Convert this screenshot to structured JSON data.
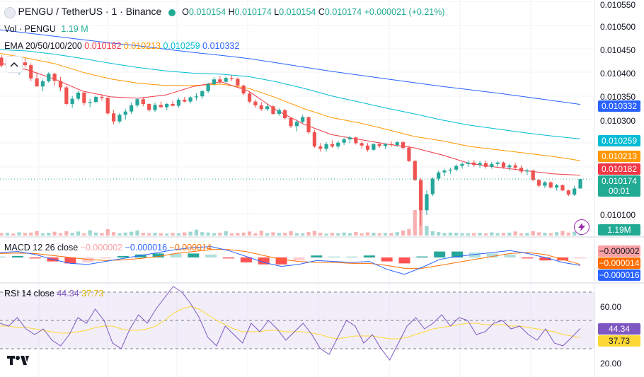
{
  "header": {
    "symbol": "PENGU / TetherUS · 1 · Binance",
    "ohlc": {
      "o_label": "O",
      "o_value": "0.010154",
      "h_label": "H",
      "h_value": "0.010174",
      "l_label": "L",
      "l_value": "0.010154",
      "c_label": "C",
      "c_value": "0.010174",
      "change": "+0.000021 (+0.21%)"
    }
  },
  "vol_legend": {
    "label": "Vol · PENGU",
    "value": "1.19 M"
  },
  "ema_legend": {
    "label": "EMA 20/50/100/200",
    "values": [
      "0.010182",
      "0.010213",
      "0.010259",
      "0.010332"
    ]
  },
  "macd_legend": {
    "label": "MACD 12 26 close",
    "values": [
      "−0.000002",
      "−0.000016",
      "−0.000014"
    ]
  },
  "rsi_legend": {
    "label": "RSI 14 close",
    "values": [
      "44.34",
      "37.73"
    ]
  },
  "price_axis": {
    "ticks": [
      "0.010550",
      "0.010500",
      "0.010450",
      "0.010400",
      "0.010350",
      "0.010300",
      "0.010100"
    ],
    "tags": {
      "ema200": "0.010332",
      "ema100": "0.010259",
      "ema50": "0.010213",
      "ema20": "0.010182",
      "last": "0.010174",
      "countdown": "00:01",
      "volume": "1.19M"
    }
  },
  "macd_axis": {
    "tags": [
      "−0.000002",
      "−0.000014",
      "−0.000016"
    ]
  },
  "rsi_axis": {
    "ticks": [
      "60.00",
      "20.00"
    ],
    "tags": [
      "44.34",
      "37.73"
    ]
  },
  "colors": {
    "up": "#26a69a",
    "down": "#ef5350",
    "ema20": "#f23645",
    "ema50": "#ff9800",
    "ema100": "#00bcd4",
    "ema200": "#2962ff",
    "macd": "#2962ff",
    "signal": "#ff6d00",
    "rsi": "#7e57c2",
    "rsi_ma": "#fdd835"
  },
  "icons": [
    "collapse-icon",
    "lightning-icon",
    "tradingview-logo"
  ],
  "chart_data": {
    "type": "candlestick",
    "interval": "1m",
    "ylim": [
      0.01005,
      0.01055
    ],
    "candles": [
      [
        0.010431,
        0.010436,
        0.01041,
        0.010414
      ],
      [
        0.010414,
        0.010425,
        0.010402,
        0.01042
      ],
      [
        0.01042,
        0.010431,
        0.010405,
        0.01041
      ],
      [
        0.01041,
        0.010426,
        0.010395,
        0.010421
      ],
      [
        0.010421,
        0.01043,
        0.01041,
        0.010415
      ],
      [
        0.010415,
        0.010419,
        0.010381,
        0.010387
      ],
      [
        0.010387,
        0.0104,
        0.01037,
        0.01037
      ],
      [
        0.01037,
        0.010385,
        0.01036,
        0.010381
      ],
      [
        0.010381,
        0.0104,
        0.010378,
        0.010397
      ],
      [
        0.010397,
        0.010399,
        0.010372,
        0.010382
      ],
      [
        0.010382,
        0.01039,
        0.01036,
        0.010368
      ],
      [
        0.010368,
        0.010372,
        0.01033,
        0.010333
      ],
      [
        0.010333,
        0.01035,
        0.010325,
        0.010344
      ],
      [
        0.010344,
        0.01036,
        0.01034,
        0.010357
      ],
      [
        0.010357,
        0.010358,
        0.01033,
        0.010335
      ],
      [
        0.010335,
        0.010344,
        0.010326,
        0.010337
      ],
      [
        0.010337,
        0.010351,
        0.010335,
        0.010348
      ],
      [
        0.010348,
        0.010354,
        0.01034,
        0.010346
      ],
      [
        0.010346,
        0.010347,
        0.01031,
        0.010313
      ],
      [
        0.010313,
        0.01032,
        0.01029,
        0.010296
      ],
      [
        0.010296,
        0.010314,
        0.010292,
        0.01031
      ],
      [
        0.01031,
        0.010322,
        0.0103,
        0.010317
      ],
      [
        0.010317,
        0.010336,
        0.010312,
        0.01033
      ],
      [
        0.01033,
        0.010345,
        0.010326,
        0.010343
      ],
      [
        0.010343,
        0.010348,
        0.010328,
        0.010333
      ],
      [
        0.010333,
        0.010334,
        0.010317,
        0.01032
      ],
      [
        0.01032,
        0.010336,
        0.010316,
        0.010331
      ],
      [
        0.010331,
        0.010338,
        0.010325,
        0.010326
      ],
      [
        0.010326,
        0.010335,
        0.01032,
        0.010333
      ],
      [
        0.010333,
        0.010339,
        0.010328,
        0.010329
      ],
      [
        0.010329,
        0.010345,
        0.010325,
        0.010342
      ],
      [
        0.010342,
        0.010348,
        0.010336,
        0.010338
      ],
      [
        0.010338,
        0.01035,
        0.010334,
        0.010347
      ],
      [
        0.010347,
        0.010356,
        0.01034,
        0.010349
      ],
      [
        0.010349,
        0.010363,
        0.010344,
        0.01036
      ],
      [
        0.01036,
        0.010378,
        0.010356,
        0.010375
      ],
      [
        0.010375,
        0.01039,
        0.010371,
        0.010385
      ],
      [
        0.010385,
        0.010392,
        0.010376,
        0.01038
      ],
      [
        0.01038,
        0.010391,
        0.010376,
        0.010388
      ],
      [
        0.010388,
        0.010394,
        0.010382,
        0.010386
      ],
      [
        0.010386,
        0.010389,
        0.01037,
        0.010372
      ],
      [
        0.010372,
        0.010374,
        0.010352,
        0.010355
      ],
      [
        0.010355,
        0.010358,
        0.010335,
        0.010338
      ],
      [
        0.010338,
        0.010342,
        0.010325,
        0.01033
      ],
      [
        0.01033,
        0.010337,
        0.010318,
        0.010322
      ],
      [
        0.010322,
        0.010332,
        0.010318,
        0.010328
      ],
      [
        0.010328,
        0.01033,
        0.01031,
        0.010312
      ],
      [
        0.010312,
        0.010324,
        0.010308,
        0.01032
      ],
      [
        0.01032,
        0.010322,
        0.0103,
        0.010303
      ],
      [
        0.010303,
        0.010306,
        0.010282,
        0.010286
      ],
      [
        0.010286,
        0.0103,
        0.010275,
        0.010295
      ],
      [
        0.010295,
        0.01031,
        0.010292,
        0.010305
      ],
      [
        0.010305,
        0.010306,
        0.01027,
        0.010273
      ],
      [
        0.010273,
        0.010278,
        0.01024,
        0.010243
      ],
      [
        0.010243,
        0.01025,
        0.010232,
        0.010238
      ],
      [
        0.010238,
        0.010252,
        0.010232,
        0.010248
      ],
      [
        0.010248,
        0.010256,
        0.01024,
        0.010243
      ],
      [
        0.010243,
        0.010255,
        0.010238,
        0.010251
      ],
      [
        0.010251,
        0.010262,
        0.010246,
        0.010258
      ],
      [
        0.010258,
        0.010266,
        0.01025,
        0.010262
      ],
      [
        0.010262,
        0.010264,
        0.010247,
        0.01025
      ],
      [
        0.01025,
        0.010254,
        0.010238,
        0.010245
      ],
      [
        0.010245,
        0.01025,
        0.010232,
        0.010236
      ],
      [
        0.010236,
        0.01025,
        0.010234,
        0.010248
      ],
      [
        0.010248,
        0.010252,
        0.01024,
        0.010244
      ],
      [
        0.010244,
        0.01025,
        0.010238,
        0.010248
      ],
      [
        0.010248,
        0.010254,
        0.010242,
        0.010246
      ],
      [
        0.010246,
        0.010254,
        0.010242,
        0.010252
      ],
      [
        0.010252,
        0.010255,
        0.010236,
        0.01024
      ],
      [
        0.01024,
        0.010245,
        0.01021,
        0.010212
      ],
      [
        0.010212,
        0.010215,
        0.01017,
        0.010172
      ],
      [
        0.010172,
        0.010176,
        0.010075,
        0.010108
      ],
      [
        0.010108,
        0.01015,
        0.010098,
        0.010142
      ],
      [
        0.010142,
        0.010178,
        0.010138,
        0.010175
      ],
      [
        0.010175,
        0.010192,
        0.01017,
        0.010188
      ],
      [
        0.010188,
        0.010196,
        0.01018,
        0.010192
      ],
      [
        0.010192,
        0.010198,
        0.010185,
        0.010194
      ],
      [
        0.010194,
        0.010205,
        0.01019,
        0.010202
      ],
      [
        0.010202,
        0.01021,
        0.010196,
        0.010206
      ],
      [
        0.010206,
        0.010214,
        0.0102,
        0.010209
      ],
      [
        0.010209,
        0.010215,
        0.0102,
        0.010204
      ],
      [
        0.010204,
        0.010212,
        0.010198,
        0.010208
      ],
      [
        0.010208,
        0.010213,
        0.010196,
        0.0102
      ],
      [
        0.0102,
        0.01021,
        0.010196,
        0.010206
      ],
      [
        0.010206,
        0.010212,
        0.0102,
        0.010209
      ],
      [
        0.010209,
        0.010211,
        0.010196,
        0.010199
      ],
      [
        0.010199,
        0.010206,
        0.010192,
        0.010203
      ],
      [
        0.010203,
        0.010208,
        0.010195,
        0.010198
      ],
      [
        0.010198,
        0.010203,
        0.010186,
        0.01019
      ],
      [
        0.01019,
        0.010196,
        0.010182,
        0.010192
      ],
      [
        0.010192,
        0.010194,
        0.01017,
        0.010172
      ],
      [
        0.010172,
        0.010174,
        0.010156,
        0.01016
      ],
      [
        0.01016,
        0.01017,
        0.010155,
        0.010167
      ],
      [
        0.010167,
        0.01017,
        0.010154,
        0.010156
      ],
      [
        0.010156,
        0.010164,
        0.01015,
        0.010161
      ],
      [
        0.010161,
        0.010163,
        0.010148,
        0.01015
      ],
      [
        0.01015,
        0.010152,
        0.010138,
        0.010141
      ],
      [
        0.010141,
        0.01016,
        0.010138,
        0.010154
      ],
      [
        0.010154,
        0.010174,
        0.010154,
        0.010174
      ]
    ],
    "ema20": [
      0.01042,
      0.010405,
      0.010385,
      0.01036,
      0.010348,
      0.010345,
      0.010352,
      0.01037,
      0.01038,
      0.01036,
      0.01032,
      0.01029,
      0.010268,
      0.010258,
      0.010248,
      0.01024,
      0.010225,
      0.010207,
      0.010199,
      0.010192,
      0.010185,
      0.010182
    ],
    "ema50": [
      0.01044,
      0.01043,
      0.010418,
      0.0104,
      0.010386,
      0.010377,
      0.010372,
      0.010372,
      0.010375,
      0.010366,
      0.010346,
      0.010323,
      0.010304,
      0.010293,
      0.010279,
      0.010264,
      0.010255,
      0.010243,
      0.010236,
      0.010229,
      0.010222,
      0.010213
    ],
    "ema100": [
      0.010448,
      0.010445,
      0.010438,
      0.010429,
      0.010419,
      0.01041,
      0.010403,
      0.010398,
      0.010396,
      0.010391,
      0.01038,
      0.010366,
      0.01035,
      0.010337,
      0.010324,
      0.010312,
      0.010299,
      0.010288,
      0.01028,
      0.010272,
      0.010265,
      0.010259
    ],
    "ema200": [
      0.01049,
      0.010483,
      0.010476,
      0.010469,
      0.010462,
      0.010456,
      0.010449,
      0.010442,
      0.010436,
      0.010429,
      0.01042,
      0.010411,
      0.010402,
      0.010394,
      0.010386,
      0.010378,
      0.01037,
      0.010363,
      0.010356,
      0.010348,
      0.01034,
      0.010332
    ],
    "volume": [
      1.1,
      1.3,
      0.9,
      1.5,
      1.2,
      1.4,
      2.2,
      1.0,
      1.3,
      1.8,
      1.1,
      2.0,
      1.3,
      1.9,
      1.0,
      2.5,
      1.4,
      1.2,
      3.0,
      1.6,
      1.1,
      1.4,
      1.8,
      2.4,
      1.2,
      1.0,
      1.3,
      1.1,
      0.9,
      1.2,
      1.0,
      1.5,
      1.8,
      2.8,
      1.6,
      1.4,
      1.1,
      1.3,
      2.1,
      1.0,
      1.2,
      1.4,
      1.9,
      1.1,
      2.3,
      1.0,
      1.5,
      1.2,
      1.3,
      2.0,
      1.1,
      1.0,
      1.6,
      2.2,
      1.3,
      0.9,
      1.2,
      1.0,
      1.4,
      1.1,
      1.7,
      1.0,
      1.5,
      1.3,
      1.0,
      1.2,
      1.1,
      1.6,
      2.4,
      3.1,
      12.0,
      16.0,
      4.5,
      2.0,
      1.6,
      1.2,
      1.4,
      1.3,
      1.1,
      1.0,
      1.2,
      1.3,
      1.0,
      1.5,
      1.1,
      1.2,
      1.4,
      1.9,
      1.0,
      1.2,
      2.0,
      1.5,
      1.3,
      1.1,
      1.6,
      2.2,
      1.4,
      1.8,
      1.19
    ],
    "macd": [
      1e-05,
      1.2e-05,
      6e-06,
      -4e-06,
      -1.2e-05,
      -1.4e-05,
      -8e-06,
      -2e-06,
      4e-06,
      1e-05,
      1.6e-05,
      2e-05,
      2.2e-05,
      1.4e-05,
      2e-06,
      -1e-05,
      -1.8e-05,
      -1.4e-05,
      -6e-06,
      -8e-06,
      -1e-05,
      -8e-06,
      -2.4e-05,
      -3.4e-05,
      -2e-05,
      -4e-06,
      2e-06,
      6e-06,
      1e-05,
      1.4e-05,
      8e-06,
      0.0,
      -1e-05,
      -1.6e-05
    ],
    "signal": [
      8e-06,
      9e-06,
      8e-06,
      4e-06,
      0.0,
      -4e-06,
      -6e-06,
      -5e-06,
      -2e-06,
      2e-06,
      8e-06,
      1.2e-05,
      1.6e-05,
      1.6e-05,
      1.2e-05,
      4e-06,
      -4e-06,
      -8e-06,
      -1e-05,
      -1e-05,
      -1.2e-05,
      -1.2e-05,
      -1.6e-05,
      -2.2e-05,
      -2.2e-05,
      -1.6e-05,
      -1e-05,
      -4e-06,
      2e-06,
      8e-06,
      1e-05,
      6e-06,
      -4e-06,
      -1.4e-05
    ],
    "rsi": [
      48,
      46,
      52,
      44,
      40,
      44,
      36,
      32,
      40,
      52,
      48,
      58,
      50,
      34,
      30,
      44,
      54,
      48,
      58,
      66,
      74,
      70,
      62,
      52,
      38,
      32,
      46,
      40,
      34,
      48,
      42,
      50,
      44,
      36,
      42,
      48,
      40,
      30,
      26,
      38,
      50,
      46,
      34,
      40,
      30,
      22,
      34,
      46,
      52,
      44,
      48,
      54,
      46,
      52,
      50,
      40,
      42,
      48,
      50,
      44,
      46,
      40,
      36,
      44,
      34,
      32,
      38,
      44.34
    ],
    "rsi_ma": [
      46,
      46,
      45,
      45,
      44,
      43,
      42,
      41,
      41,
      42,
      43,
      45,
      46,
      46,
      44,
      43,
      43,
      44,
      46,
      50,
      55,
      58,
      60,
      58,
      54,
      50,
      47,
      44,
      42,
      42,
      42,
      43,
      43,
      42,
      42,
      42,
      41,
      40,
      38,
      37,
      38,
      39,
      39,
      39,
      38,
      37,
      37,
      38,
      40,
      42,
      44,
      45,
      46,
      47,
      48,
      48,
      47,
      47,
      47,
      46,
      46,
      45,
      44,
      43,
      42,
      40,
      39,
      37.73
    ],
    "rsi_levels": [
      70,
      50,
      30
    ]
  }
}
